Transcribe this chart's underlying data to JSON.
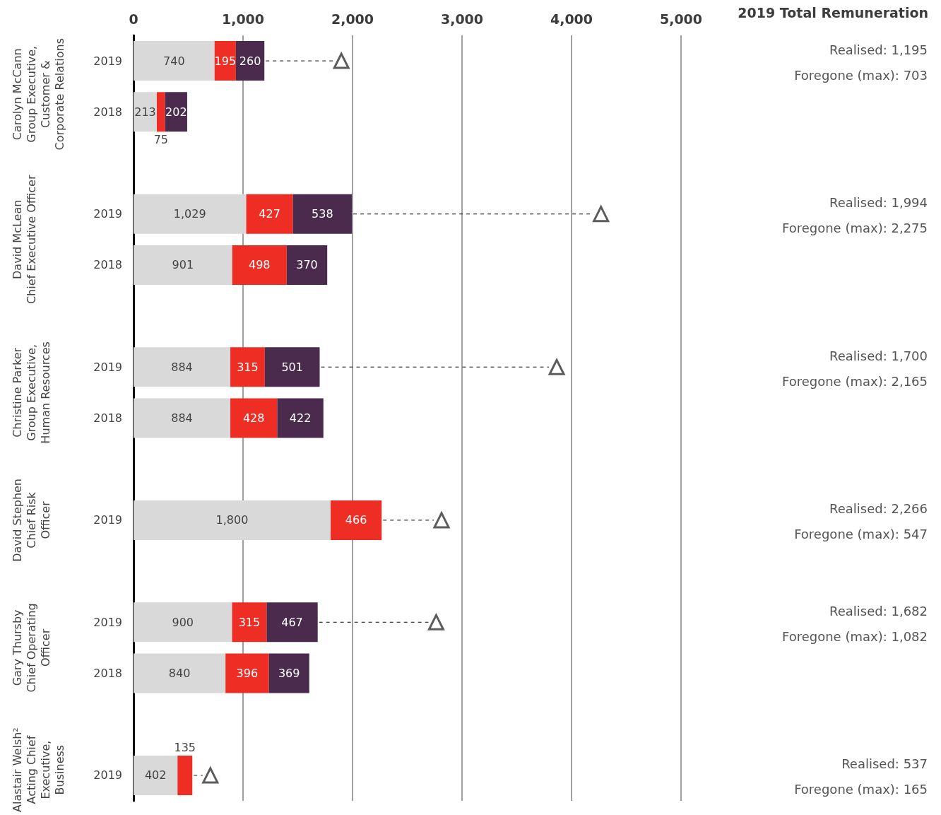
{
  "chart_data": {
    "type": "bar",
    "orientation": "horizontal",
    "stacked": true,
    "grid": "x",
    "categories": [
      "2019",
      "2018",
      null,
      "2019",
      "2018",
      null,
      "2019",
      "2018",
      null,
      "2019",
      null,
      "2019",
      "2018",
      null,
      "2019"
    ],
    "xlim": [
      0,
      5000
    ],
    "xticks": [
      0,
      {
        "value": 1000,
        "label": "1,000"
      },
      {
        "value": 2000,
        "label": "2,000"
      },
      {
        "value": 3000,
        "label": "3,000"
      },
      {
        "value": 4000,
        "label": "4,000"
      },
      {
        "value": 5000,
        "label": "5,000"
      }
    ],
    "series": [
      {
        "color": "#d9d9d9",
        "values": [
          740,
          213,
          null,
          1029,
          901,
          null,
          884,
          884,
          null,
          1800,
          null,
          900,
          840,
          null,
          402
        ],
        "value_labels": [
          "740",
          "213",
          null,
          "1,029",
          "901",
          null,
          "884",
          "884",
          null,
          "1,800",
          null,
          "900",
          "840",
          null,
          "402"
        ]
      },
      {
        "color": "#ee2e24",
        "values": [
          195,
          75,
          null,
          427,
          498,
          null,
          315,
          428,
          null,
          466,
          null,
          315,
          396,
          null,
          135
        ],
        "value_labels": [
          "195",
          "75",
          null,
          "427",
          "498",
          null,
          "315",
          "428",
          null,
          "466",
          null,
          "315",
          "396",
          null,
          "135"
        ]
      },
      {
        "color": "#4a2b4d",
        "values": [
          260,
          202,
          null,
          538,
          370,
          null,
          501,
          422,
          null,
          null,
          null,
          467,
          369,
          null,
          null
        ],
        "value_labels": [
          "260",
          "202",
          null,
          "538",
          "370",
          null,
          "501",
          "422",
          null,
          null,
          null,
          "467",
          "369",
          null,
          null
        ]
      },
      {
        "type": "scatter",
        "marker": "triangle",
        "line_style": "dashed",
        "color": "#333333",
        "values": [
          1898,
          null,
          null,
          4269,
          null,
          null,
          3865,
          null,
          null,
          2813,
          null,
          2764,
          null,
          null,
          702
        ]
      }
    ],
    "annotations": [
      "2019 Total Remuneration",
      "Carolyn McCann\nGroup Executive,\nCustomer &\nCorporate Relations",
      "Realised: 1,195",
      "Foregone (max): 703",
      "David McLean\nChief Executive Officer",
      "Realised: 1,994",
      "Foregone (max): 2,275",
      "Christine Parker\nGroup Executive,\nHuman Resources",
      "Realised: 1,700",
      "Foregone (max): 2,165",
      "David Stephen\nChief Risk\nOfficer",
      "Realised: 2,266",
      "Foregone (max): 547",
      "Gary Thursby\nChief Operating\nOfficer",
      "Realised: 1,682",
      "Foregone (max): 1,082",
      "Alastair Welsh²\nActing Chief\nExecutive,\nBusiness",
      "Realised: 537",
      "Foregone (max): 165"
    ]
  }
}
